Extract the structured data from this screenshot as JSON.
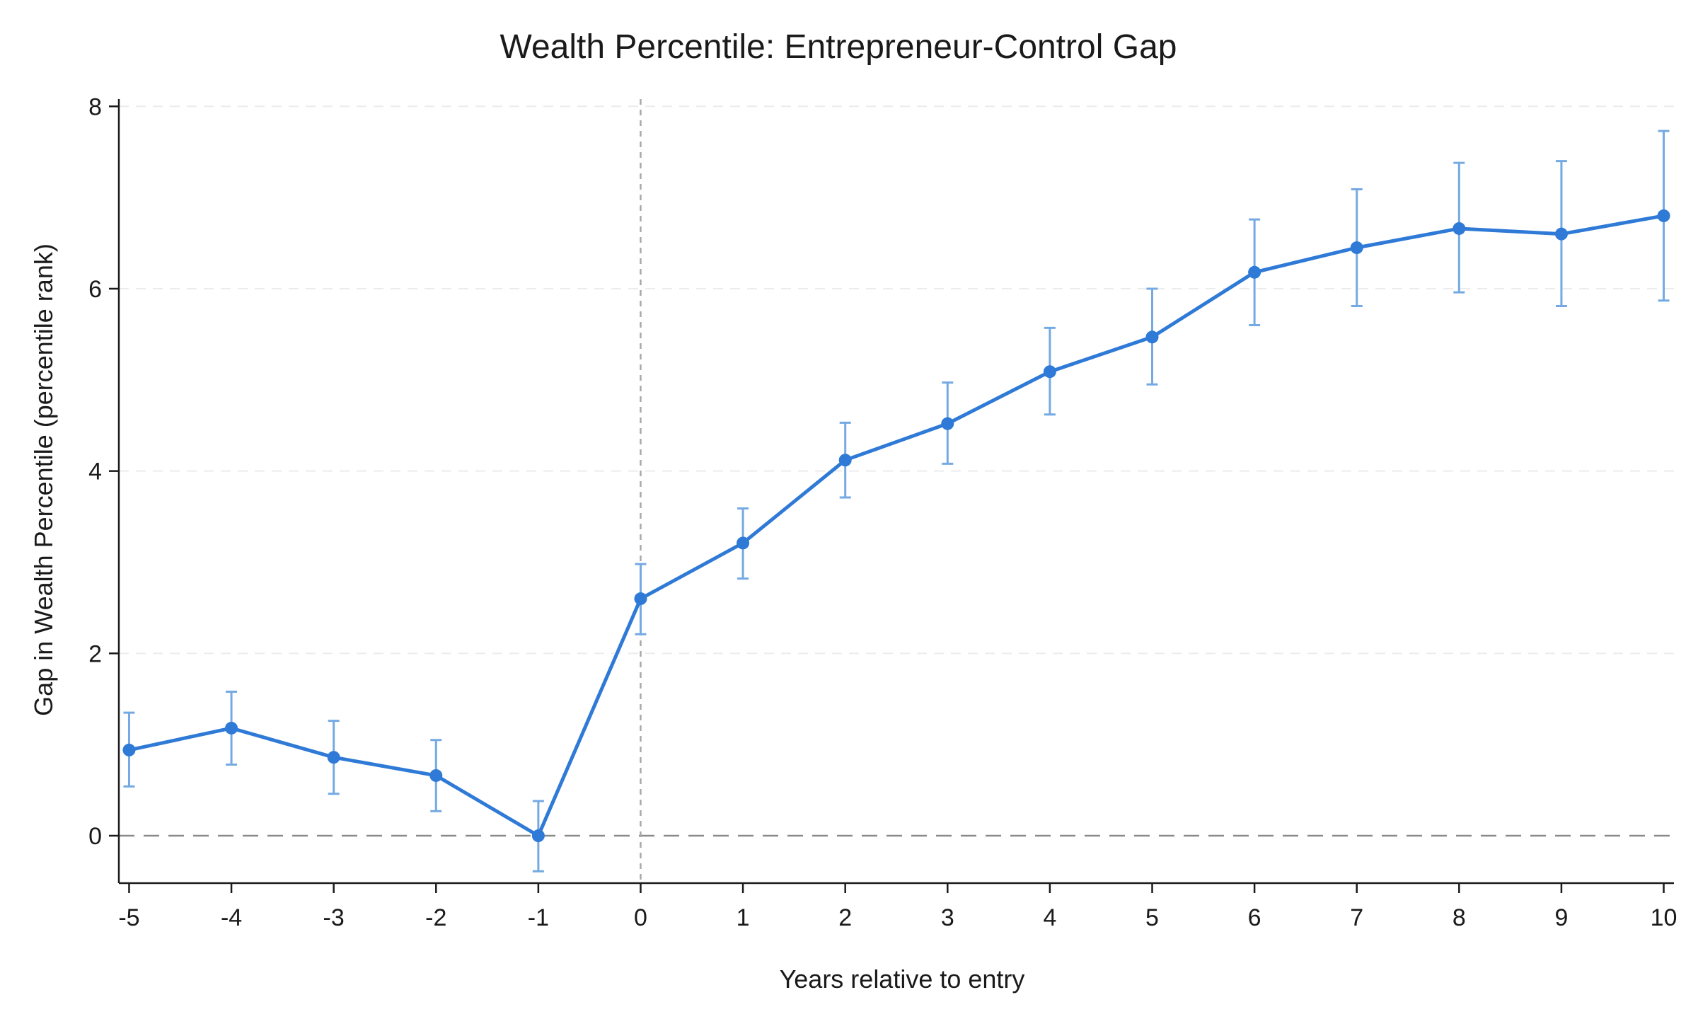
{
  "chart_data": {
    "type": "line",
    "title": "Wealth Percentile: Entrepreneur-Control Gap",
    "xlabel": "Years relative to entry",
    "ylabel": "Gap in Wealth Percentile (percentile rank)",
    "x": [
      -5,
      -4,
      -3,
      -2,
      -1,
      0,
      1,
      2,
      3,
      4,
      5,
      6,
      7,
      8,
      9,
      10
    ],
    "x_tick_labels": [
      "-5",
      "-4",
      "-3",
      "-2",
      "-1",
      "0",
      "1",
      "2",
      "3",
      "4",
      "5",
      "6",
      "7",
      "8",
      "9",
      "10"
    ],
    "y_ticks": [
      0,
      2,
      4,
      6,
      8
    ],
    "y_tick_labels": [
      "0",
      "2",
      "4",
      "6",
      "8"
    ],
    "xlim": [
      -5.1,
      10.1
    ],
    "ylim": [
      -0.52,
      8.08
    ],
    "grid": "horizontal dashed, light",
    "reference_lines": {
      "horizontal_zero": 0,
      "vertical_event_x": 0
    },
    "series": [
      {
        "values": [
          0.94,
          1.18,
          0.86,
          0.66,
          0.0,
          2.6,
          3.21,
          4.12,
          4.52,
          5.09,
          5.47,
          6.18,
          6.45,
          6.66,
          6.6,
          6.8
        ],
        "ci_lower": [
          0.54,
          0.78,
          0.46,
          0.27,
          -0.39,
          2.21,
          2.82,
          3.71,
          4.08,
          4.62,
          4.95,
          5.6,
          5.81,
          5.96,
          5.81,
          5.87
        ],
        "ci_upper": [
          1.35,
          1.58,
          1.26,
          1.05,
          0.38,
          2.98,
          3.59,
          4.53,
          4.97,
          5.57,
          6.0,
          6.76,
          7.09,
          7.38,
          7.4,
          7.73
        ]
      }
    ],
    "colors": {
      "line": "#2e7ad6",
      "marker": "#2e7ad6",
      "error_bar": "#74a9e3"
    }
  }
}
